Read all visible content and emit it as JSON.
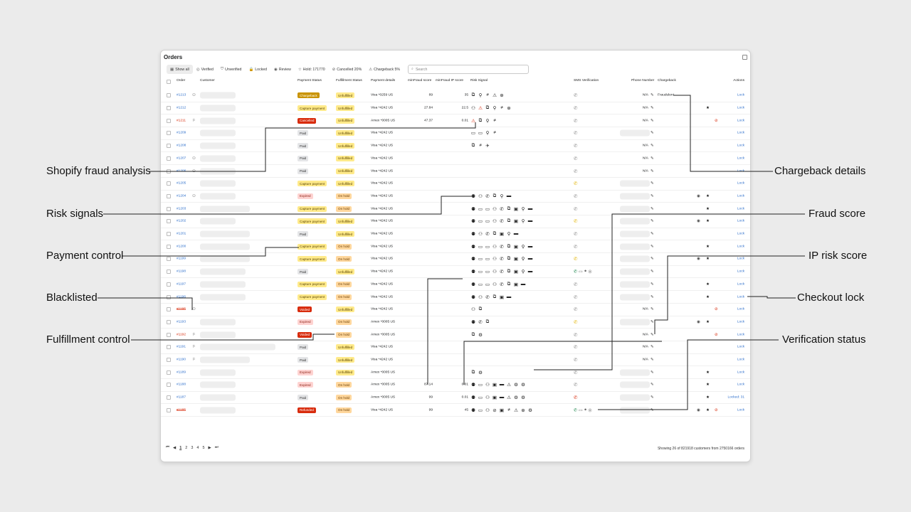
{
  "window": {
    "title": "Orders"
  },
  "filters": [
    {
      "icon": "grid-icon",
      "glyph": "▦",
      "label": "Show all",
      "active": true
    },
    {
      "icon": "verified-icon",
      "glyph": "◎",
      "label": "Verified"
    },
    {
      "icon": "unverified-icon",
      "glyph": "⛉",
      "label": "Unverified"
    },
    {
      "icon": "lock-icon",
      "glyph": "🔒",
      "label": "Locked"
    },
    {
      "icon": "eye-icon",
      "glyph": "◉",
      "label": "Review"
    },
    {
      "icon": "star-icon",
      "glyph": "☆",
      "label": "Hold: 171770"
    },
    {
      "icon": "cancel-icon",
      "glyph": "⊘",
      "label": "Cancelled 20%"
    },
    {
      "icon": "chargeback-icon",
      "glyph": "⚠",
      "label": "Chargeback 5%"
    }
  ],
  "search": {
    "placeholder": "Search"
  },
  "columns": {
    "order": "Order",
    "customer": "Customer",
    "payment_status": "Payment Status",
    "fulfillment_status": "Fulfillment Status",
    "payment_details": "Payment details",
    "minfraud_score": "minFraud score",
    "minfraud_ip": "minFraud IP score",
    "risk_signal": "Risk Signal",
    "sms": "SMS Verification",
    "phone": "Phone Number",
    "chargeback": "Chargeback",
    "actions": "Actions"
  },
  "rows": [
    {
      "id": "#1213",
      "idStyle": "",
      "custIcon": "⚇",
      "custW": 50,
      "pay": "Chargeback",
      "payCls": "b-charge",
      "ful": "Unfulfilled",
      "fulCls": "b-unful",
      "details": "Visa *0259 US",
      "score": "89",
      "ip": "35",
      "risk": [
        "⧉",
        "⚲",
        "≠",
        "⚠",
        "⊕"
      ],
      "phoneIc": "",
      "phoneNum": "N/A",
      "phW": 0,
      "charge": "Fraudulent",
      "eye": false,
      "star": false,
      "nope": false,
      "action": "Lock"
    },
    {
      "id": "#1212",
      "idStyle": "",
      "custIcon": "",
      "custW": 50,
      "pay": "Capture payment",
      "payCls": "b-capture",
      "ful": "Unfulfilled",
      "fulCls": "b-unful",
      "details": "Visa *4242 US",
      "score": "27.84",
      "ip": "22.5",
      "risk": [
        "⚇",
        "⚠w",
        "⧉",
        "⚲",
        "≠",
        "⊕"
      ],
      "phoneIc": "",
      "phoneNum": "N/A",
      "phW": 0,
      "charge": "",
      "eye": false,
      "star": true,
      "nope": false,
      "action": "Lock"
    },
    {
      "id": "#1211",
      "idStyle": "redsolid",
      "custIcon": "⚐",
      "custW": 50,
      "pay": "Cancelled",
      "payCls": "b-cancel",
      "ful": "Unfulfilled",
      "fulCls": "b-unful",
      "details": "Amex *0005 US",
      "score": "47.37",
      "ip": "0.01",
      "risk": [
        "⚠w",
        "⧉",
        "⚲",
        "≠"
      ],
      "phoneIc": "",
      "phoneNum": "N/A",
      "phW": 0,
      "charge": "",
      "eye": false,
      "star": false,
      "nope": true,
      "action": "Lock"
    },
    {
      "id": "#1209",
      "idStyle": "",
      "custIcon": "",
      "custW": 50,
      "pay": "Paid",
      "payCls": "b-paid",
      "ful": "Unfulfilled",
      "fulCls": "b-unful",
      "details": "Visa *4242 US",
      "score": "",
      "ip": "",
      "risk": [
        "▭",
        "▭",
        "⚲",
        "≠"
      ],
      "phoneIc": "",
      "phoneNum": "",
      "phW": 42,
      "charge": "",
      "eye": false,
      "star": false,
      "nope": false,
      "action": "Lock"
    },
    {
      "id": "#1208",
      "idStyle": "",
      "custIcon": "",
      "custW": 50,
      "pay": "Paid",
      "payCls": "b-paid",
      "ful": "Unfulfilled",
      "fulCls": "b-unful",
      "details": "Visa *4242 US",
      "score": "",
      "ip": "",
      "risk": [
        "⧉",
        "≠",
        "✈"
      ],
      "phoneIc": "",
      "phoneNum": "N/A",
      "phW": 0,
      "charge": "",
      "eye": false,
      "star": false,
      "nope": false,
      "action": "Lock"
    },
    {
      "id": "#1207",
      "idStyle": "",
      "custIcon": "⚇",
      "custW": 50,
      "pay": "Paid",
      "payCls": "b-paid",
      "ful": "Unfulfilled",
      "fulCls": "b-unful",
      "details": "Visa *4242 US",
      "score": "",
      "ip": "",
      "risk": [],
      "phoneIc": "",
      "phoneNum": "N/A",
      "phW": 0,
      "charge": "",
      "eye": false,
      "star": false,
      "nope": false,
      "action": "Lock"
    },
    {
      "id": "#1206",
      "idStyle": "",
      "custIcon": "⚇",
      "custW": 50,
      "pay": "Paid",
      "payCls": "b-paid",
      "ful": "Unfulfilled",
      "fulCls": "b-unful",
      "details": "Visa *4242 US",
      "score": "",
      "ip": "",
      "risk": [],
      "phoneIc": "",
      "phoneNum": "N/A",
      "phW": 0,
      "charge": "",
      "eye": false,
      "star": false,
      "nope": false,
      "action": "Lock"
    },
    {
      "id": "#1205",
      "idStyle": "",
      "custIcon": "",
      "custW": 50,
      "pay": "Capture payment",
      "payCls": "b-capture",
      "ful": "Unfulfilled",
      "fulCls": "b-unful",
      "details": "Visa *4242 US",
      "score": "",
      "ip": "",
      "risk": [],
      "phoneIc": "yellow",
      "phoneNum": "",
      "phW": 42,
      "charge": "",
      "eye": false,
      "star": false,
      "nope": false,
      "action": "Lock"
    },
    {
      "id": "#1204",
      "idStyle": "",
      "custIcon": "⚇",
      "custW": 50,
      "pay": "Expired",
      "payCls": "b-expired",
      "ful": "On hold",
      "fulCls": "b-hold",
      "details": "Visa *4242 US",
      "score": "",
      "ip": "",
      "risk": [
        "⚉",
        "⚇",
        "✆",
        "⧉",
        "⚲",
        "▬"
      ],
      "phoneIc": "",
      "phoneNum": "",
      "phW": 42,
      "charge": "",
      "eye": true,
      "star": true,
      "nope": false,
      "action": "Lock"
    },
    {
      "id": "#1203",
      "idStyle": "",
      "custIcon": "",
      "custW": 70,
      "pay": "Capture payment",
      "payCls": "b-capture",
      "ful": "On hold",
      "fulCls": "b-hold",
      "details": "Visa *4242 US",
      "score": "",
      "ip": "",
      "risk": [
        "⚉",
        "▭",
        "▭",
        "⚇",
        "✆",
        "⧉",
        "▣",
        "⚲",
        "▬"
      ],
      "phoneIc": "",
      "phoneNum": "",
      "phW": 42,
      "charge": "",
      "eye": false,
      "star": true,
      "nope": false,
      "action": "Lock"
    },
    {
      "id": "#1202",
      "idStyle": "",
      "custIcon": "",
      "custW": 50,
      "pay": "Capture payment",
      "payCls": "b-capture",
      "ful": "Unfulfilled",
      "fulCls": "b-unful",
      "details": "Visa *4242 US",
      "score": "",
      "ip": "",
      "risk": [
        "⚉",
        "▭",
        "▭",
        "⚇",
        "✆",
        "⧉",
        "▣",
        "⚲",
        "▬"
      ],
      "phoneIc": "yellow",
      "phoneNum": "",
      "phW": 42,
      "charge": "",
      "eye": true,
      "star": true,
      "nope": false,
      "action": "Lock"
    },
    {
      "id": "#1201",
      "idStyle": "",
      "custIcon": "",
      "custW": 70,
      "pay": "Paid",
      "payCls": "b-paid",
      "ful": "Unfulfilled",
      "fulCls": "b-unful",
      "details": "Visa *4242 US",
      "score": "",
      "ip": "",
      "risk": [
        "⚉",
        "⚇",
        "✆",
        "⧉",
        "▣",
        "⚲",
        "▬"
      ],
      "phoneIc": "",
      "phoneNum": "",
      "phW": 42,
      "charge": "",
      "eye": false,
      "star": false,
      "nope": false,
      "action": "Lock"
    },
    {
      "id": "#1200",
      "idStyle": "",
      "custIcon": "",
      "custW": 70,
      "pay": "Capture payment",
      "payCls": "b-capture",
      "ful": "On hold",
      "fulCls": "b-hold",
      "details": "Visa *4242 US",
      "score": "",
      "ip": "",
      "risk": [
        "⚉",
        "▭",
        "▭",
        "⚇",
        "✆",
        "⧉",
        "▣",
        "⚲",
        "▬"
      ],
      "phoneIc": "",
      "phoneNum": "",
      "phW": 42,
      "charge": "",
      "eye": false,
      "star": true,
      "nope": false,
      "action": "Lock"
    },
    {
      "id": "#1199",
      "idStyle": "",
      "custIcon": "",
      "custW": 70,
      "pay": "Capture payment",
      "payCls": "b-capture",
      "ful": "On hold",
      "fulCls": "b-hold",
      "details": "Visa *4242 US",
      "score": "",
      "ip": "",
      "risk": [
        "⚉",
        "▭",
        "▭",
        "⚇",
        "✆",
        "⧉",
        "▣",
        "⚲",
        "▬"
      ],
      "phoneIc": "yellow",
      "phoneNum": "",
      "phW": 42,
      "charge": "",
      "eye": true,
      "star": true,
      "nope": false,
      "action": "Lock"
    },
    {
      "id": "#1198",
      "idStyle": "",
      "custIcon": "",
      "custW": 64,
      "pay": "Paid",
      "payCls": "b-paid",
      "ful": "Unfulfilled",
      "fulCls": "b-unful",
      "details": "Visa *4242 US",
      "score": "",
      "ip": "",
      "risk": [
        "⚉",
        "▭",
        "▭",
        "⚇",
        "✆",
        "⧉",
        "▣",
        "⚲",
        "▬"
      ],
      "phoneIc": "sms",
      "phoneNum": "",
      "phW": 42,
      "charge": "",
      "eye": false,
      "star": false,
      "nope": false,
      "action": "Lock"
    },
    {
      "id": "#1197",
      "idStyle": "",
      "custIcon": "",
      "custW": 64,
      "pay": "Capture payment",
      "payCls": "b-capture",
      "ful": "On hold",
      "fulCls": "b-hold",
      "details": "Visa *4242 US",
      "score": "",
      "ip": "",
      "risk": [
        "⚉",
        "▭",
        "▭",
        "⚇",
        "✆",
        "⧉",
        "▣",
        "▬"
      ],
      "phoneIc": "",
      "phoneNum": "",
      "phW": 42,
      "charge": "",
      "eye": false,
      "star": true,
      "nope": false,
      "action": "Lock"
    },
    {
      "id": "#1196",
      "idStyle": "",
      "custIcon": "",
      "custW": 64,
      "pay": "Capture payment",
      "payCls": "b-capture",
      "ful": "On hold",
      "fulCls": "b-hold",
      "details": "Visa *4242 US",
      "score": "",
      "ip": "",
      "risk": [
        "⚉",
        "⚇",
        "✆",
        "⧉",
        "▣",
        "▬"
      ],
      "phoneIc": "",
      "phoneNum": "",
      "phW": 42,
      "charge": "",
      "eye": false,
      "star": true,
      "nope": false,
      "action": "Lock"
    },
    {
      "id": "#1195",
      "idStyle": "red",
      "custIcon": "⚇",
      "custW": 0,
      "pay": "Voided",
      "payCls": "b-voided",
      "ful": "Unfulfilled",
      "fulCls": "b-unful",
      "details": "Visa *4242 US",
      "score": "",
      "ip": "",
      "risk": [
        "⚇",
        "⧉"
      ],
      "phoneIc": "",
      "phoneNum": "N/A",
      "phW": 0,
      "charge": "",
      "eye": false,
      "star": false,
      "nope": true,
      "action": "Lock"
    },
    {
      "id": "#1193",
      "idStyle": "",
      "custIcon": "",
      "custW": 50,
      "pay": "Expired",
      "payCls": "b-expired",
      "ful": "On hold",
      "fulCls": "b-hold",
      "details": "Amex *0005 US",
      "score": "",
      "ip": "",
      "risk": [
        "⚉",
        "✆",
        "⧉"
      ],
      "phoneIc": "yellow",
      "phoneNum": "",
      "phW": 42,
      "charge": "",
      "eye": true,
      "star": true,
      "nope": false,
      "action": "Lock"
    },
    {
      "id": "#1192",
      "idStyle": "redsolid",
      "custIcon": "⚐",
      "custW": 50,
      "pay": "Voided",
      "payCls": "b-voided",
      "ful": "On hold",
      "fulCls": "b-hold",
      "details": "Amex *0005 US",
      "score": "",
      "ip": "",
      "risk": [
        "⧉",
        "⚙"
      ],
      "phoneIc": "",
      "phoneNum": "N/A",
      "phW": 0,
      "charge": "",
      "eye": false,
      "star": false,
      "nope": true,
      "action": "Lock"
    },
    {
      "id": "#1191",
      "idStyle": "",
      "custIcon": "⚐",
      "custW": 106,
      "pay": "Paid",
      "payCls": "b-paid",
      "ful": "Unfulfilled",
      "fulCls": "b-unful",
      "details": "Visa *4242 US",
      "score": "",
      "ip": "",
      "risk": [],
      "phoneIc": "",
      "phoneNum": "N/A",
      "phW": 0,
      "charge": "",
      "eye": false,
      "star": false,
      "nope": false,
      "action": "Lock"
    },
    {
      "id": "#1190",
      "idStyle": "",
      "custIcon": "⚐",
      "custW": 70,
      "pay": "Paid",
      "payCls": "b-paid",
      "ful": "Unfulfilled",
      "fulCls": "b-unful",
      "details": "Visa *4242 US",
      "score": "",
      "ip": "",
      "risk": [],
      "phoneIc": "",
      "phoneNum": "N/A",
      "phW": 0,
      "charge": "",
      "eye": false,
      "star": false,
      "nope": false,
      "action": "Lock"
    },
    {
      "id": "#1189",
      "idStyle": "",
      "custIcon": "",
      "custW": 50,
      "pay": "Expired",
      "payCls": "b-expired",
      "ful": "Unfulfilled",
      "fulCls": "b-unful",
      "details": "Amex *0005 US",
      "score": "",
      "ip": "",
      "risk": [
        "⧉",
        "⚙"
      ],
      "phoneIc": "",
      "phoneNum": "",
      "phW": 42,
      "charge": "",
      "eye": false,
      "star": true,
      "nope": false,
      "action": "Lock"
    },
    {
      "id": "#1188",
      "idStyle": "",
      "custIcon": "",
      "custW": 50,
      "pay": "Expired",
      "payCls": "b-expired",
      "ful": "On hold",
      "fulCls": "b-hold",
      "details": "Amex *0005 US",
      "score": "87.14",
      "ip": "0.01",
      "risk": [
        "⚉",
        "▭",
        "⚇",
        "▣",
        "▬",
        "⚠",
        "⚙",
        "⚙"
      ],
      "phoneIc": "",
      "phoneNum": "",
      "phW": 42,
      "charge": "",
      "eye": false,
      "star": true,
      "nope": false,
      "action": "Lock"
    },
    {
      "id": "#1187",
      "idStyle": "",
      "custIcon": "",
      "custW": 50,
      "pay": "Paid",
      "payCls": "b-paid",
      "ful": "On hold",
      "fulCls": "b-hold",
      "details": "Amex *0005 US",
      "score": "99",
      "ip": "0.01",
      "risk": [
        "⚉",
        "▭",
        "⚇",
        "▣",
        "▬",
        "⚠",
        "⚙",
        "⚙"
      ],
      "phoneIc": "red",
      "phoneNum": "",
      "phW": 42,
      "charge": "",
      "eye": false,
      "star": true,
      "nope": false,
      "action": "Locked: 31"
    },
    {
      "id": "#1185",
      "idStyle": "red",
      "custIcon": "",
      "custW": 50,
      "pay": "Refunded",
      "payCls": "b-refund",
      "ful": "On hold",
      "fulCls": "b-hold",
      "details": "Visa *4242 US",
      "score": "99",
      "ip": "45",
      "risk": [
        "⚉",
        "▭",
        "⚇",
        "⊘",
        "▣",
        "≠",
        "⚠",
        "⊕",
        "⚙"
      ],
      "phoneIc": "sms",
      "phoneNum": "",
      "phW": 42,
      "charge": "",
      "eye": true,
      "star": true,
      "nope": true,
      "action": "Lock"
    }
  ],
  "pager": {
    "first": "⏮",
    "prev": "◀",
    "pages": [
      "1",
      "2",
      "3",
      "4",
      "5"
    ],
    "next": "▶",
    "last": "⏭"
  },
  "footer": {
    "showing": "Showing 26 of 821918 customers from 2750166 orders"
  },
  "callouts": {
    "shopify": "Shopify fraud analysis",
    "risk": "Risk signals",
    "payment": "Payment control",
    "blacklisted": "Blacklisted",
    "fulfillment": "Fulfillment control",
    "chargeback": "Chargeback details",
    "fraud": "Fraud score",
    "ip": "IP risk score",
    "checkout": "Checkout lock",
    "verification": "Verification status"
  }
}
